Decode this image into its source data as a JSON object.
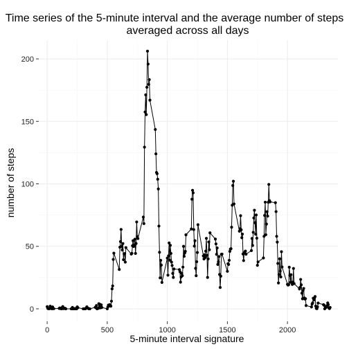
{
  "chart_data": {
    "type": "line",
    "title": "Time series of the 5-minute interval and the average number of steps averaged across all days",
    "title_lines": [
      "Time series of the 5-minute interval and the average number of steps",
      "averaged across all days"
    ],
    "xlabel": "5-minute interval signature",
    "ylabel": "number of steps",
    "xlim": [
      -70,
      2420
    ],
    "ylim": [
      -10,
      215
    ],
    "x_ticks": [
      0,
      500,
      1000,
      1500,
      2000
    ],
    "y_ticks": [
      0,
      50,
      100,
      150,
      200
    ],
    "x_tick_labels": [
      "0",
      "500",
      "1000",
      "1500",
      "2000"
    ],
    "y_tick_labels": [
      "0",
      "50",
      "100",
      "150",
      "200"
    ],
    "grid": true,
    "legend": "none",
    "colors": {
      "line": "#000000",
      "points": "#000000",
      "grid": "#ebebeb",
      "background": "#ffffff"
    },
    "series": [
      {
        "points": [
          [
            0,
            1.7
          ],
          [
            5,
            0.3
          ],
          [
            10,
            0.1
          ],
          [
            15,
            0.2
          ],
          [
            20,
            0.1
          ],
          [
            25,
            2.1
          ],
          [
            30,
            0.5
          ],
          [
            35,
            0.9
          ],
          [
            40,
            0
          ],
          [
            45,
            1.5
          ],
          [
            50,
            0.3
          ],
          [
            55,
            0.1
          ],
          [
            100,
            0.3
          ],
          [
            105,
            0.7
          ],
          [
            110,
            0.2
          ],
          [
            115,
            0.3
          ],
          [
            120,
            0
          ],
          [
            125,
            1.1
          ],
          [
            130,
            1.8
          ],
          [
            135,
            0.2
          ],
          [
            140,
            0.2
          ],
          [
            145,
            0.4
          ],
          [
            150,
            0.3
          ],
          [
            155,
            0
          ],
          [
            200,
            0
          ],
          [
            205,
            0
          ],
          [
            210,
            1.1
          ],
          [
            215,
            0
          ],
          [
            220,
            0
          ],
          [
            225,
            0.1
          ],
          [
            230,
            0
          ],
          [
            235,
            0.2
          ],
          [
            240,
            0
          ],
          [
            245,
            0
          ],
          [
            250,
            1.5
          ],
          [
            255,
            0.9
          ],
          [
            300,
            0
          ],
          [
            305,
            0
          ],
          [
            310,
            0
          ],
          [
            315,
            0
          ],
          [
            320,
            0.2
          ],
          [
            325,
            0.6
          ],
          [
            330,
            1.6
          ],
          [
            335,
            0.6
          ],
          [
            340,
            0.5
          ],
          [
            345,
            0.1
          ],
          [
            350,
            0
          ],
          [
            355,
            0
          ],
          [
            400,
            1.2
          ],
          [
            405,
            0.9
          ],
          [
            410,
            2.6
          ],
          [
            415,
            0
          ],
          [
            420,
            0.3
          ],
          [
            425,
            0.4
          ],
          [
            430,
            4.1
          ],
          [
            435,
            0.7
          ],
          [
            440,
            3.5
          ],
          [
            445,
            0.8
          ],
          [
            450,
            3.1
          ],
          [
            455,
            1.1
          ],
          [
            500,
            0
          ],
          [
            505,
            1.6
          ],
          [
            510,
            3
          ],
          [
            515,
            2.2
          ],
          [
            520,
            3.3
          ],
          [
            525,
            3
          ],
          [
            530,
            2.1
          ],
          [
            535,
            6.1
          ],
          [
            540,
            16
          ],
          [
            545,
            18.3
          ],
          [
            550,
            39.5
          ],
          [
            555,
            44.5
          ],
          [
            600,
            31.5
          ],
          [
            605,
            49.3
          ],
          [
            610,
            53.8
          ],
          [
            615,
            63.5
          ],
          [
            620,
            50
          ],
          [
            625,
            47.1
          ],
          [
            630,
            52.2
          ],
          [
            635,
            39.3
          ],
          [
            640,
            44
          ],
          [
            645,
            44.2
          ],
          [
            650,
            37.4
          ],
          [
            655,
            49
          ],
          [
            700,
            43.8
          ],
          [
            705,
            44.4
          ],
          [
            710,
            50.5
          ],
          [
            715,
            54.5
          ],
          [
            720,
            49.9
          ],
          [
            725,
            51
          ],
          [
            730,
            55.7
          ],
          [
            735,
            44.3
          ],
          [
            740,
            52.3
          ],
          [
            745,
            69.5
          ],
          [
            750,
            57.8
          ],
          [
            755,
            56.2
          ],
          [
            800,
            73.4
          ],
          [
            805,
            68.2
          ],
          [
            810,
            129.4
          ],
          [
            815,
            157.5
          ],
          [
            820,
            171.2
          ],
          [
            825,
            155.4
          ],
          [
            830,
            177.3
          ],
          [
            835,
            206.2
          ],
          [
            840,
            195.9
          ],
          [
            845,
            179.6
          ],
          [
            850,
            183.4
          ],
          [
            855,
            167
          ],
          [
            900,
            143.5
          ],
          [
            905,
            124
          ],
          [
            910,
            109.1
          ],
          [
            915,
            108.1
          ],
          [
            920,
            103.7
          ],
          [
            925,
            95.9
          ],
          [
            930,
            66.2
          ],
          [
            935,
            45.2
          ],
          [
            940,
            24.8
          ],
          [
            945,
            38.8
          ],
          [
            950,
            35
          ],
          [
            955,
            21.1
          ],
          [
            1000,
            40.6
          ],
          [
            1005,
            26.9
          ],
          [
            1010,
            42.4
          ],
          [
            1015,
            52.7
          ],
          [
            1020,
            38.9
          ],
          [
            1025,
            50.8
          ],
          [
            1030,
            44.3
          ],
          [
            1035,
            37.4
          ],
          [
            1040,
            34.7
          ],
          [
            1045,
            28.3
          ],
          [
            1050,
            25.1
          ],
          [
            1055,
            31.9
          ],
          [
            1100,
            31.4
          ],
          [
            1105,
            29.7
          ],
          [
            1110,
            21.3
          ],
          [
            1115,
            25.5
          ],
          [
            1120,
            28.4
          ],
          [
            1125,
            26.5
          ],
          [
            1130,
            33.4
          ],
          [
            1135,
            50
          ],
          [
            1140,
            42
          ],
          [
            1145,
            44.6
          ],
          [
            1150,
            46
          ],
          [
            1155,
            59.2
          ],
          [
            1200,
            63.9
          ],
          [
            1205,
            87.7
          ],
          [
            1210,
            94.8
          ],
          [
            1215,
            92.8
          ],
          [
            1220,
            63.4
          ],
          [
            1225,
            50.2
          ],
          [
            1230,
            54.5
          ],
          [
            1235,
            32.4
          ],
          [
            1240,
            26.5
          ],
          [
            1245,
            37.7
          ],
          [
            1250,
            45.1
          ],
          [
            1255,
            67.3
          ],
          [
            1300,
            42.3
          ],
          [
            1305,
            39.9
          ],
          [
            1310,
            43.3
          ],
          [
            1315,
            40.98
          ],
          [
            1320,
            46.2
          ],
          [
            1325,
            56.4
          ],
          [
            1330,
            42.8
          ],
          [
            1335,
            25.1
          ],
          [
            1340,
            39.97
          ],
          [
            1345,
            53.5
          ],
          [
            1350,
            47.3
          ],
          [
            1355,
            60.8
          ],
          [
            1400,
            55.8
          ],
          [
            1405,
            51.96
          ],
          [
            1410,
            43.6
          ],
          [
            1415,
            48.7
          ],
          [
            1420,
            35.5
          ],
          [
            1425,
            37.5
          ],
          [
            1430,
            41.8
          ],
          [
            1435,
            27.5
          ],
          [
            1440,
            17.1
          ],
          [
            1445,
            26.1
          ],
          [
            1450,
            43.6
          ],
          [
            1455,
            43.8
          ],
          [
            1500,
            30
          ],
          [
            1505,
            36.1
          ],
          [
            1510,
            35.5
          ],
          [
            1515,
            38.8
          ],
          [
            1520,
            45.96
          ],
          [
            1525,
            47.8
          ],
          [
            1530,
            48.1
          ],
          [
            1535,
            65.3
          ],
          [
            1540,
            82.9
          ],
          [
            1545,
            98.7
          ],
          [
            1550,
            102.1
          ],
          [
            1555,
            83.96
          ],
          [
            1600,
            62.1
          ],
          [
            1605,
            64.1
          ],
          [
            1610,
            74.5
          ],
          [
            1615,
            63.2
          ],
          [
            1620,
            56.9
          ],
          [
            1625,
            59.8
          ],
          [
            1630,
            43.9
          ],
          [
            1635,
            38.6
          ],
          [
            1640,
            44.7
          ],
          [
            1645,
            45.5
          ],
          [
            1650,
            46.2
          ],
          [
            1655,
            43.7
          ],
          [
            1700,
            46.6
          ],
          [
            1705,
            56.3
          ],
          [
            1710,
            50.7
          ],
          [
            1715,
            61.2
          ],
          [
            1720,
            72.7
          ],
          [
            1725,
            78.9
          ],
          [
            1730,
            68.9
          ],
          [
            1735,
            59.7
          ],
          [
            1740,
            75.1
          ],
          [
            1745,
            56.5
          ],
          [
            1750,
            34.8
          ],
          [
            1755,
            37.5
          ],
          [
            1800,
            40.7
          ],
          [
            1805,
            58
          ],
          [
            1810,
            74.7
          ],
          [
            1815,
            85.3
          ],
          [
            1820,
            59.3
          ],
          [
            1825,
            67.8
          ],
          [
            1830,
            77.7
          ],
          [
            1835,
            74.2
          ],
          [
            1840,
            85.3
          ],
          [
            1845,
            99.5
          ],
          [
            1850,
            86.6
          ],
          [
            1855,
            85.6
          ],
          [
            1900,
            84.9
          ],
          [
            1905,
            77.8
          ],
          [
            1910,
            58
          ],
          [
            1915,
            53.4
          ],
          [
            1920,
            36.3
          ],
          [
            1925,
            20.7
          ],
          [
            1930,
            27.4
          ],
          [
            1935,
            40
          ],
          [
            1940,
            30.2
          ],
          [
            1945,
            25.5
          ],
          [
            1950,
            45.7
          ],
          [
            1955,
            33.5
          ],
          [
            2000,
            19.6
          ],
          [
            2005,
            19
          ],
          [
            2010,
            19.3
          ],
          [
            2015,
            33.3
          ],
          [
            2020,
            26.8
          ],
          [
            2025,
            21.2
          ],
          [
            2030,
            27.3
          ],
          [
            2035,
            21.3
          ],
          [
            2040,
            19.5
          ],
          [
            2045,
            21.3
          ],
          [
            2050,
            32.3
          ],
          [
            2055,
            20.2
          ],
          [
            2100,
            15.9
          ],
          [
            2105,
            17.2
          ],
          [
            2110,
            23.5
          ],
          [
            2115,
            19.2
          ],
          [
            2120,
            12.5
          ],
          [
            2125,
            8
          ],
          [
            2130,
            14.7
          ],
          [
            2135,
            16.3
          ],
          [
            2140,
            8.7
          ],
          [
            2145,
            7.8
          ],
          [
            2150,
            8.1
          ],
          [
            2155,
            2.6
          ],
          [
            2200,
            1.5
          ],
          [
            2205,
            3.7
          ],
          [
            2210,
            4.8
          ],
          [
            2215,
            8.5
          ],
          [
            2220,
            7.1
          ],
          [
            2225,
            8.7
          ],
          [
            2230,
            9.8
          ],
          [
            2235,
            2.2
          ],
          [
            2240,
            0.3
          ],
          [
            2245,
            0.1
          ],
          [
            2250,
            1.6
          ],
          [
            2255,
            4.6
          ],
          [
            2300,
            3.3
          ],
          [
            2305,
            2.8
          ],
          [
            2310,
            0
          ],
          [
            2315,
            0.8
          ],
          [
            2320,
            1
          ],
          [
            2325,
            1.6
          ],
          [
            2330,
            2.6
          ],
          [
            2335,
            4.7
          ],
          [
            2340,
            3.3
          ],
          [
            2345,
            0.6
          ],
          [
            2350,
            0.2
          ],
          [
            2355,
            1.1
          ]
        ]
      }
    ]
  }
}
